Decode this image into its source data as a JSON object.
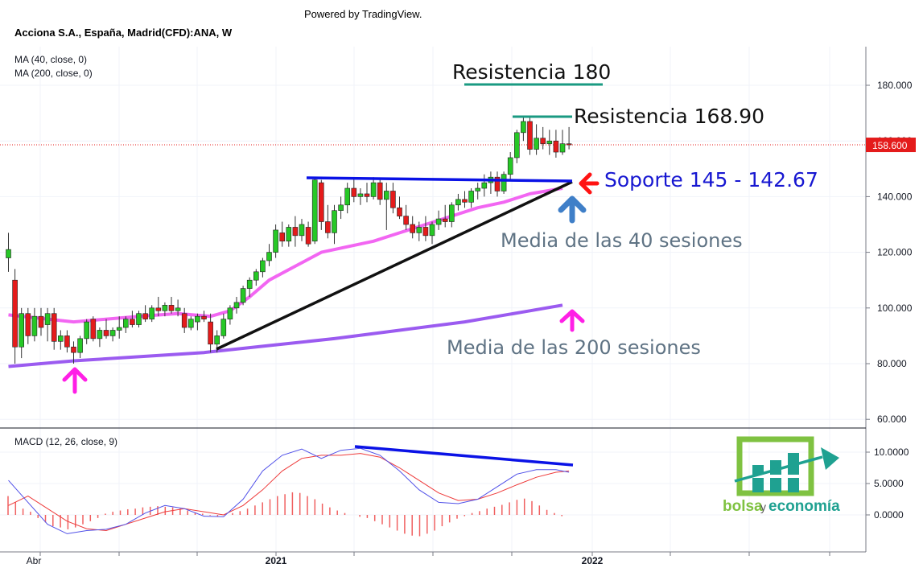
{
  "header": {
    "powered_by": "Powered by TradingView.",
    "symbol": "Acciona S.A., España, Madrid(CFD):ANA, W",
    "ma40": "MA (40, close, 0)",
    "ma200": "MA (200, close, 0)",
    "macd": "MACD (12, 26, close, 9)"
  },
  "annotations": {
    "res180": "Resistencia 180",
    "res168": "Resistencia 168.90",
    "support": "Soporte 145 - 142.67",
    "ma40_note": "Media de las 40 sesiones",
    "ma200_note": "Media de las 200 sesiones"
  },
  "price_tag": "158.600",
  "logo": {
    "part1": "bolsa",
    "part2": "y",
    "part3": "economía"
  },
  "colors": {
    "up": "#26c826",
    "down": "#e41b1b",
    "ma40": "#f266f2",
    "ma200": "#9b5bf0",
    "support_line": "#0a12e6",
    "resistance": "#1a9a82",
    "trend": "#111111",
    "annot_blue": "#1717d1",
    "annot_gray": "#5f7384",
    "macd_line": "#5050e8",
    "signal_line": "#ee3a3a",
    "hist": "#f06060",
    "arrow_pink": "#ff1fe6",
    "arrow_blue": "#3f7fc8",
    "arrow_red": "#ff1212",
    "logo_green": "#7fc241",
    "logo_teal": "#1fa191"
  },
  "chart_data": [
    {
      "type": "candlestick",
      "title": "Acciona S.A., España, Madrid(CFD):ANA, W",
      "price_axis": {
        "ticks": [
          "180.000",
          "160.000",
          "140.000",
          "120.000",
          "100.000",
          "80.000",
          "60.000"
        ],
        "range": [
          56,
          194
        ]
      },
      "time_axis": {
        "labels": [
          "Abr",
          "2021",
          "2022"
        ]
      },
      "last_price": 158.6,
      "candles": [
        {
          "o": 118,
          "h": 127,
          "l": 113,
          "c": 121
        },
        {
          "o": 110,
          "h": 114,
          "l": 80,
          "c": 86
        },
        {
          "o": 86,
          "h": 100,
          "l": 82,
          "c": 98
        },
        {
          "o": 98,
          "h": 100,
          "l": 87,
          "c": 90
        },
        {
          "o": 90,
          "h": 100,
          "l": 88,
          "c": 97
        },
        {
          "o": 97,
          "h": 100,
          "l": 90,
          "c": 93
        },
        {
          "o": 94,
          "h": 100,
          "l": 88,
          "c": 98
        },
        {
          "o": 98,
          "h": 100,
          "l": 85,
          "c": 88
        },
        {
          "o": 88,
          "h": 92,
          "l": 85,
          "c": 90
        },
        {
          "o": 90,
          "h": 92,
          "l": 84,
          "c": 86
        },
        {
          "o": 86,
          "h": 88,
          "l": 80,
          "c": 84
        },
        {
          "o": 84,
          "h": 90,
          "l": 82,
          "c": 89
        },
        {
          "o": 89,
          "h": 96,
          "l": 87,
          "c": 95
        },
        {
          "o": 96,
          "h": 97,
          "l": 88,
          "c": 89
        },
        {
          "o": 89,
          "h": 93,
          "l": 86,
          "c": 92
        },
        {
          "o": 92,
          "h": 96,
          "l": 89,
          "c": 90
        },
        {
          "o": 90,
          "h": 93,
          "l": 88,
          "c": 92
        },
        {
          "o": 92,
          "h": 97,
          "l": 89,
          "c": 93
        },
        {
          "o": 93,
          "h": 97,
          "l": 91,
          "c": 96
        },
        {
          "o": 96,
          "h": 99,
          "l": 93,
          "c": 94
        },
        {
          "o": 94,
          "h": 99,
          "l": 93,
          "c": 98
        },
        {
          "o": 98,
          "h": 101,
          "l": 95,
          "c": 96
        },
        {
          "o": 96,
          "h": 101,
          "l": 95,
          "c": 100
        },
        {
          "o": 100,
          "h": 104,
          "l": 97,
          "c": 99
        },
        {
          "o": 99,
          "h": 102,
          "l": 97,
          "c": 101
        },
        {
          "o": 101,
          "h": 104,
          "l": 98,
          "c": 99
        },
        {
          "o": 99,
          "h": 103,
          "l": 97,
          "c": 100
        },
        {
          "o": 98,
          "h": 100,
          "l": 91,
          "c": 93
        },
        {
          "o": 93,
          "h": 97,
          "l": 92,
          "c": 96
        },
        {
          "o": 95,
          "h": 98,
          "l": 92,
          "c": 97
        },
        {
          "o": 97,
          "h": 99,
          "l": 95,
          "c": 96
        },
        {
          "o": 95,
          "h": 98,
          "l": 84,
          "c": 87
        },
        {
          "o": 87,
          "h": 92,
          "l": 84,
          "c": 90
        },
        {
          "o": 90,
          "h": 98,
          "l": 89,
          "c": 96
        },
        {
          "o": 96,
          "h": 101,
          "l": 94,
          "c": 100
        },
        {
          "o": 100,
          "h": 104,
          "l": 98,
          "c": 102
        },
        {
          "o": 102,
          "h": 108,
          "l": 101,
          "c": 107
        },
        {
          "o": 107,
          "h": 111,
          "l": 104,
          "c": 110
        },
        {
          "o": 110,
          "h": 114,
          "l": 108,
          "c": 113
        },
        {
          "o": 113,
          "h": 118,
          "l": 111,
          "c": 117
        },
        {
          "o": 117,
          "h": 123,
          "l": 115,
          "c": 120
        },
        {
          "o": 120,
          "h": 130,
          "l": 118,
          "c": 128
        },
        {
          "o": 127,
          "h": 131,
          "l": 122,
          "c": 124
        },
        {
          "o": 124,
          "h": 130,
          "l": 122,
          "c": 129
        },
        {
          "o": 129,
          "h": 133,
          "l": 122,
          "c": 126
        },
        {
          "o": 126,
          "h": 132,
          "l": 124,
          "c": 130
        },
        {
          "o": 129,
          "h": 131,
          "l": 122,
          "c": 123
        },
        {
          "o": 124,
          "h": 147,
          "l": 123,
          "c": 146
        },
        {
          "o": 145,
          "h": 146,
          "l": 128,
          "c": 131
        },
        {
          "o": 131,
          "h": 137,
          "l": 125,
          "c": 127
        },
        {
          "o": 127,
          "h": 137,
          "l": 123,
          "c": 135
        },
        {
          "o": 135,
          "h": 140,
          "l": 132,
          "c": 137
        },
        {
          "o": 137,
          "h": 145,
          "l": 134,
          "c": 143
        },
        {
          "o": 143,
          "h": 147,
          "l": 138,
          "c": 140
        },
        {
          "o": 140,
          "h": 143,
          "l": 137,
          "c": 141
        },
        {
          "o": 141,
          "h": 145,
          "l": 138,
          "c": 140
        },
        {
          "o": 140,
          "h": 147,
          "l": 139,
          "c": 145
        },
        {
          "o": 145,
          "h": 146,
          "l": 137,
          "c": 139
        },
        {
          "o": 139,
          "h": 145,
          "l": 128,
          "c": 142
        },
        {
          "o": 142,
          "h": 145,
          "l": 134,
          "c": 136
        },
        {
          "o": 136,
          "h": 140,
          "l": 132,
          "c": 133
        },
        {
          "o": 133,
          "h": 137,
          "l": 128,
          "c": 130
        },
        {
          "o": 130,
          "h": 133,
          "l": 125,
          "c": 127
        },
        {
          "o": 127,
          "h": 131,
          "l": 124,
          "c": 129
        },
        {
          "o": 129,
          "h": 133,
          "l": 124,
          "c": 126
        },
        {
          "o": 126,
          "h": 131,
          "l": 123,
          "c": 130
        },
        {
          "o": 130,
          "h": 135,
          "l": 128,
          "c": 132
        },
        {
          "o": 132,
          "h": 137,
          "l": 129,
          "c": 131
        },
        {
          "o": 131,
          "h": 138,
          "l": 129,
          "c": 137
        },
        {
          "o": 137,
          "h": 141,
          "l": 135,
          "c": 139
        },
        {
          "o": 139,
          "h": 142,
          "l": 136,
          "c": 138
        },
        {
          "o": 138,
          "h": 143,
          "l": 136,
          "c": 142
        },
        {
          "o": 142,
          "h": 145,
          "l": 139,
          "c": 143
        },
        {
          "o": 143,
          "h": 148,
          "l": 140,
          "c": 145
        },
        {
          "o": 145,
          "h": 149,
          "l": 141,
          "c": 147
        },
        {
          "o": 147,
          "h": 149,
          "l": 140,
          "c": 142
        },
        {
          "o": 142,
          "h": 149,
          "l": 141,
          "c": 148
        },
        {
          "o": 148,
          "h": 156,
          "l": 146,
          "c": 154
        },
        {
          "o": 154,
          "h": 164,
          "l": 152,
          "c": 163
        },
        {
          "o": 163,
          "h": 169,
          "l": 160,
          "c": 167
        },
        {
          "o": 167,
          "h": 169,
          "l": 155,
          "c": 157
        },
        {
          "o": 157,
          "h": 166,
          "l": 155,
          "c": 161
        },
        {
          "o": 161,
          "h": 165,
          "l": 157,
          "c": 159
        },
        {
          "o": 159,
          "h": 164,
          "l": 155,
          "c": 160
        },
        {
          "o": 160,
          "h": 164,
          "l": 154,
          "c": 156
        },
        {
          "o": 156,
          "h": 164,
          "l": 155,
          "c": 159
        },
        {
          "o": 159,
          "h": 165,
          "l": 157,
          "c": 158.6
        }
      ],
      "ma40": [
        [
          0,
          97.5
        ],
        [
          6,
          96
        ],
        [
          10,
          95
        ],
        [
          20,
          97
        ],
        [
          26,
          98
        ],
        [
          31,
          97
        ],
        [
          34,
          99
        ],
        [
          37,
          104
        ],
        [
          40,
          110
        ],
        [
          44,
          115
        ],
        [
          48,
          120
        ],
        [
          52,
          122
        ],
        [
          56,
          124
        ],
        [
          60,
          127
        ],
        [
          64,
          130
        ],
        [
          68,
          133
        ],
        [
          72,
          136
        ],
        [
          76,
          138
        ],
        [
          80,
          141
        ],
        [
          85,
          143
        ]
      ],
      "ma200": [
        [
          0,
          79
        ],
        [
          10,
          81
        ],
        [
          20,
          82.5
        ],
        [
          30,
          84
        ],
        [
          40,
          86.5
        ],
        [
          50,
          89
        ],
        [
          60,
          92
        ],
        [
          70,
          95
        ],
        [
          80,
          99
        ],
        [
          85,
          101
        ]
      ]
    },
    {
      "type": "macd",
      "title": "MACD (12, 26, close, 9)",
      "ticks": [
        "10.0000",
        "5.0000",
        "0.0000"
      ],
      "range": [
        -5,
        13
      ],
      "macd": [
        [
          0,
          5.5
        ],
        [
          3,
          2
        ],
        [
          6,
          -1.5
        ],
        [
          9,
          -3
        ],
        [
          12,
          -2.5
        ],
        [
          15,
          -2.3
        ],
        [
          18,
          -1.5
        ],
        [
          21,
          0.3
        ],
        [
          24,
          1.5
        ],
        [
          27,
          1
        ],
        [
          30,
          -0.2
        ],
        [
          33,
          -0.3
        ],
        [
          36,
          2.5
        ],
        [
          39,
          7
        ],
        [
          42,
          9.5
        ],
        [
          45,
          10.5
        ],
        [
          48,
          9
        ],
        [
          51,
          10.3
        ],
        [
          54,
          10.6
        ],
        [
          57,
          9.5
        ],
        [
          60,
          7
        ],
        [
          63,
          4
        ],
        [
          66,
          2
        ],
        [
          69,
          1.8
        ],
        [
          72,
          2.5
        ],
        [
          75,
          4.5
        ],
        [
          78,
          6.5
        ],
        [
          81,
          7.2
        ],
        [
          84,
          7.2
        ],
        [
          86,
          6.8
        ]
      ],
      "signal": [
        [
          0,
          1.5
        ],
        [
          3,
          3
        ],
        [
          6,
          1
        ],
        [
          9,
          -1
        ],
        [
          12,
          -2.2
        ],
        [
          15,
          -2.5
        ],
        [
          18,
          -1.5
        ],
        [
          21,
          -0.5
        ],
        [
          24,
          0.5
        ],
        [
          27,
          1
        ],
        [
          30,
          0.5
        ],
        [
          33,
          0
        ],
        [
          36,
          1.5
        ],
        [
          39,
          4
        ],
        [
          42,
          7
        ],
        [
          45,
          9
        ],
        [
          48,
          9.5
        ],
        [
          51,
          9.5
        ],
        [
          54,
          9.8
        ],
        [
          57,
          9.2
        ],
        [
          60,
          7.5
        ],
        [
          63,
          5.5
        ],
        [
          66,
          3.5
        ],
        [
          69,
          2.3
        ],
        [
          72,
          2.5
        ],
        [
          75,
          3.5
        ],
        [
          78,
          4.8
        ],
        [
          81,
          6
        ],
        [
          84,
          6.8
        ],
        [
          86,
          7
        ]
      ],
      "histogram": [
        3,
        2,
        1,
        0.5,
        -0.5,
        -1.2,
        -1.8,
        -2,
        -2.3,
        -2,
        -1.5,
        -1,
        -0.5,
        0.2,
        0.5,
        0.7,
        0.9,
        1,
        1.2,
        1.3,
        1.4,
        1.3,
        1.2,
        1.0,
        0.7,
        0.4,
        0.2,
        -0.1,
        -0.3,
        0,
        0.3,
        0.6,
        1.0,
        1.5,
        2,
        2.5,
        3,
        3.3,
        3.6,
        3.5,
        3,
        2.5,
        1.8,
        1.2,
        0.7,
        0.3,
        0,
        -0.3,
        -0.5,
        -1,
        -1.5,
        -2,
        -2.5,
        -3,
        -3.3,
        -3.4,
        -3,
        -2.5,
        -1.8,
        -1.2,
        -0.6,
        -0.2,
        0.3,
        0.6,
        1,
        1.3,
        1.6,
        2,
        2.4,
        2.6,
        2.2,
        1.5,
        0.8,
        0.3,
        -0.2
      ]
    }
  ]
}
